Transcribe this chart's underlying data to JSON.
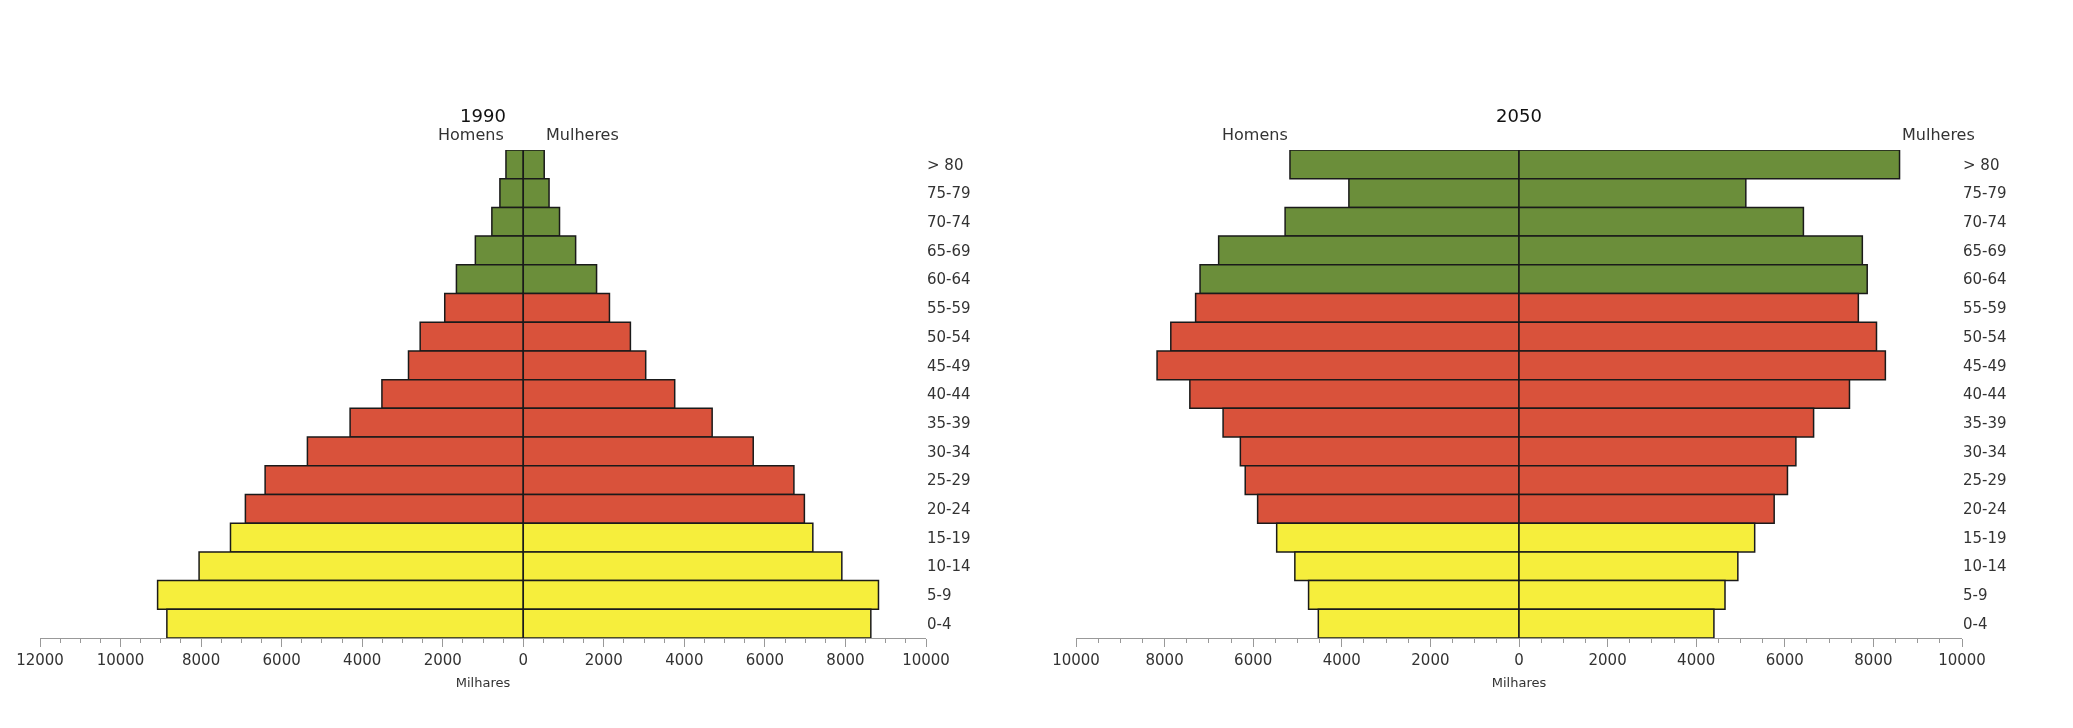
{
  "chart_data": [
    {
      "type": "bar",
      "title": "1990",
      "orientation": "horizontal",
      "stacked": true,
      "legend": false,
      "grid": false,
      "xlabel": "Milhares",
      "categories": [
        "> 80",
        "75-79",
        "70-74",
        "65-69",
        "60-64",
        "55-59",
        "50-54",
        "45-49",
        "40-44",
        "35-39",
        "30-34",
        "25-29",
        "20-24",
        "15-19",
        "10-14",
        "5-9",
        "0-4"
      ],
      "xlim": [
        -12000,
        10000
      ],
      "xticks": [
        {
          "value": -12000,
          "label": "12000"
        },
        {
          "value": -10000,
          "label": "10000"
        },
        {
          "value": -8000,
          "label": "8000"
        },
        {
          "value": -6000,
          "label": "6000"
        },
        {
          "value": -4000,
          "label": "4000"
        },
        {
          "value": -2000,
          "label": "2000"
        },
        0,
        2000,
        4000,
        6000,
        8000,
        10000
      ],
      "series": [
        {
          "name": "Homens",
          "colors": [
            "#6b8e3a",
            "#6b8e3a",
            "#6b8e3a",
            "#6b8e3a",
            "#6b8e3a",
            "#d9523b",
            "#d9523b",
            "#d9523b",
            "#d9523b",
            "#d9523b",
            "#d9523b",
            "#d9523b",
            "#d9523b",
            "#f6ee3c",
            "#f6ee3c",
            "#f6ee3c",
            "#f6ee3c"
          ],
          "values": [
            -430,
            -580,
            -780,
            -1190,
            -1660,
            -1950,
            -2560,
            -2850,
            -3510,
            -4300,
            -5360,
            -6410,
            -6900,
            -7270,
            -8050,
            -9080,
            -8850
          ]
        },
        {
          "name": "Mulheres",
          "colors": [
            "#6b8e3a",
            "#6b8e3a",
            "#6b8e3a",
            "#6b8e3a",
            "#6b8e3a",
            "#d9523b",
            "#d9523b",
            "#d9523b",
            "#d9523b",
            "#d9523b",
            "#d9523b",
            "#d9523b",
            "#d9523b",
            "#f6ee3c",
            "#f6ee3c",
            "#f6ee3c",
            "#f6ee3c"
          ],
          "values": [
            520,
            640,
            900,
            1300,
            1820,
            2140,
            2660,
            3040,
            3760,
            4690,
            5710,
            6720,
            6980,
            7190,
            7910,
            8820,
            8630
          ]
        }
      ]
    },
    {
      "type": "bar",
      "title": "2050",
      "orientation": "horizontal",
      "stacked": true,
      "legend": false,
      "grid": false,
      "xlabel": "Milhares",
      "categories": [
        "> 80",
        "75-79",
        "70-74",
        "65-69",
        "60-64",
        "55-59",
        "50-54",
        "45-49",
        "40-44",
        "35-39",
        "30-34",
        "25-29",
        "20-24",
        "15-19",
        "10-14",
        "5-9",
        "0-4"
      ],
      "xlim": [
        -10000,
        10000
      ],
      "xticks": [
        {
          "value": -10000,
          "label": "10000"
        },
        {
          "value": -8000,
          "label": "8000"
        },
        {
          "value": -6000,
          "label": "6000"
        },
        {
          "value": -4000,
          "label": "4000"
        },
        {
          "value": -2000,
          "label": "2000"
        },
        0,
        2000,
        4000,
        6000,
        8000,
        10000
      ],
      "series": [
        {
          "name": "Homens",
          "colors": [
            "#6b8e3a",
            "#6b8e3a",
            "#6b8e3a",
            "#6b8e3a",
            "#6b8e3a",
            "#d9523b",
            "#d9523b",
            "#d9523b",
            "#d9523b",
            "#d9523b",
            "#d9523b",
            "#d9523b",
            "#d9523b",
            "#f6ee3c",
            "#f6ee3c",
            "#f6ee3c",
            "#f6ee3c"
          ],
          "values": [
            -5170,
            -3840,
            -5280,
            -6780,
            -7200,
            -7300,
            -7860,
            -8170,
            -7430,
            -6680,
            -6290,
            -6180,
            -5900,
            -5470,
            -5060,
            -4750,
            -4530
          ]
        },
        {
          "name": "Mulheres",
          "colors": [
            "#6b8e3a",
            "#6b8e3a",
            "#6b8e3a",
            "#6b8e3a",
            "#6b8e3a",
            "#d9523b",
            "#d9523b",
            "#d9523b",
            "#d9523b",
            "#d9523b",
            "#d9523b",
            "#d9523b",
            "#d9523b",
            "#f6ee3c",
            "#f6ee3c",
            "#f6ee3c",
            "#f6ee3c"
          ],
          "values": [
            8590,
            5120,
            6420,
            7750,
            7860,
            7660,
            8070,
            8270,
            7460,
            6650,
            6250,
            6060,
            5760,
            5320,
            4940,
            4650,
            4400
          ]
        }
      ]
    }
  ]
}
